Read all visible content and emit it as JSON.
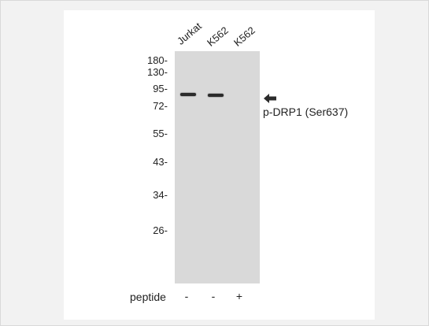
{
  "figure": {
    "lanes": [
      "Jurkat",
      "K562",
      "K562"
    ],
    "mw_markers": [
      "180-",
      "130-",
      "95-",
      "72-",
      "55-",
      "43-",
      "34-",
      "26-"
    ],
    "arrow_icon": "left-arrow-icon",
    "target_label": "p-DRP1 (Ser637)",
    "peptide_title": "peptide",
    "peptide_signs": [
      "-",
      "-",
      "+"
    ],
    "band_color": "#2b2b2b",
    "gel_color": "#d9d9d9"
  }
}
